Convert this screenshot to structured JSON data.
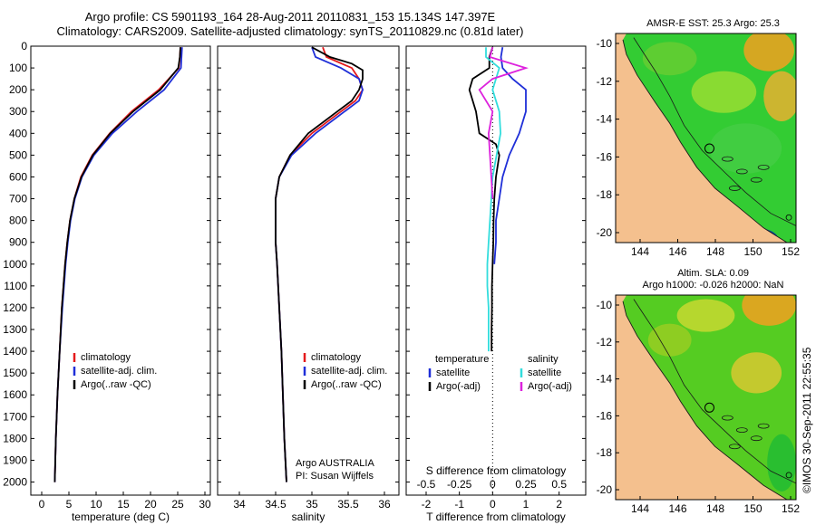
{
  "title_line1": "Argo profile: CS 5901193_164 28-Aug-2011 20110831_153 15.134S 147.397E",
  "title_line2": "Climatology: CARS2009. Satellite-adjusted climatology: synTS_20110829.nc (0.81d later)",
  "credit": "©IMOS 30-Sep-2011 22:55:35",
  "colors": {
    "climatology": "#e41a1c",
    "satellite": "#1f2fd8",
    "argo": "#000000",
    "salinity_satellite": "#33dddd",
    "salinity_argo": "#dd22dd",
    "land": "#f4c08e",
    "coast": "#1a1a1a"
  },
  "chart_data": [
    {
      "type": "line",
      "xlabel": "temperature (deg C)",
      "xlim": [
        -2,
        31
      ],
      "xticks": [
        "0",
        "5",
        "10",
        "15",
        "20",
        "25",
        "30"
      ],
      "ylim": [
        0,
        2060
      ],
      "yticks": [
        "0",
        "100",
        "200",
        "300",
        "400",
        "500",
        "600",
        "700",
        "800",
        "900",
        "1000",
        "1100",
        "1200",
        "1300",
        "1400",
        "1500",
        "1600",
        "1700",
        "1800",
        "1900",
        "2000"
      ],
      "legend": [
        "climatology",
        "satellite-adj. clim.",
        "Argo(..raw -QC)"
      ],
      "series": [
        {
          "name": "climatology",
          "depth": [
            5,
            50,
            100,
            200,
            300,
            400,
            500,
            600,
            700,
            800,
            900,
            1000,
            1200,
            1400,
            1600,
            1800,
            2000
          ],
          "values": [
            25.5,
            25.4,
            25.2,
            21.5,
            16.5,
            12.5,
            9.3,
            7.2,
            6.0,
            5.2,
            4.7,
            4.3,
            3.7,
            3.3,
            2.9,
            2.6,
            2.4
          ]
        },
        {
          "name": "satellite-adj. clim.",
          "depth": [
            5,
            50,
            100,
            200,
            300,
            400,
            500,
            600,
            700,
            800,
            900,
            1000,
            1200,
            1400,
            1600,
            1800,
            2000
          ],
          "values": [
            25.8,
            25.7,
            25.6,
            22.5,
            17.5,
            13.0,
            9.6,
            7.4,
            6.1,
            5.3,
            4.8,
            4.4,
            3.8,
            3.3,
            2.9,
            2.6,
            2.4
          ]
        },
        {
          "name": "Argo(..raw -QC)",
          "depth": [
            5,
            50,
            100,
            200,
            300,
            400,
            500,
            600,
            700,
            800,
            900,
            1000,
            1200,
            1400,
            1600,
            1800,
            2000
          ],
          "values": [
            25.5,
            25.4,
            25.1,
            21.8,
            16.8,
            12.6,
            9.4,
            7.3,
            6.0,
            5.2,
            4.7,
            4.3,
            3.7,
            3.3,
            2.9,
            2.6,
            2.4
          ]
        }
      ]
    },
    {
      "type": "line",
      "xlabel": "salinity",
      "xlim": [
        33.7,
        36.2
      ],
      "xticks": [
        "34",
        "34.5",
        "35",
        "35.5",
        "36"
      ],
      "ylim": [
        0,
        2060
      ],
      "legend": [
        "climatology",
        "satellite-adj. clim.",
        "Argo(..raw -QC)"
      ],
      "annotation": [
        "Argo AUSTRALIA",
        "PI: Susan Wijffels"
      ],
      "series": [
        {
          "name": "climatology",
          "depth": [
            5,
            50,
            100,
            150,
            200,
            250,
            300,
            400,
            500,
            600,
            700,
            800,
            900,
            1000,
            1200,
            1400,
            1600,
            1800,
            2000
          ],
          "values": [
            35.15,
            35.2,
            35.55,
            35.65,
            35.7,
            35.6,
            35.4,
            35.0,
            34.7,
            34.55,
            34.5,
            34.5,
            34.5,
            34.52,
            34.55,
            34.58,
            34.6,
            34.62,
            34.65
          ]
        },
        {
          "name": "satellite-adj. clim.",
          "depth": [
            5,
            50,
            100,
            150,
            200,
            250,
            300,
            400,
            500,
            600,
            700,
            800,
            900,
            1000,
            1200,
            1400,
            1600,
            1800,
            2000
          ],
          "values": [
            35.0,
            35.05,
            35.4,
            35.65,
            35.7,
            35.65,
            35.45,
            35.05,
            34.72,
            34.55,
            34.5,
            34.5,
            34.5,
            34.52,
            34.55,
            34.58,
            34.6,
            34.62,
            34.65
          ]
        },
        {
          "name": "Argo(..raw -QC)",
          "depth": [
            5,
            50,
            80,
            110,
            150,
            200,
            250,
            300,
            400,
            500,
            600,
            700,
            800,
            900,
            1000,
            1200,
            1400,
            1600,
            1800,
            2000
          ],
          "values": [
            35.0,
            35.25,
            35.55,
            35.7,
            35.7,
            35.65,
            35.55,
            35.35,
            34.95,
            34.7,
            34.55,
            34.5,
            34.5,
            34.5,
            34.52,
            34.55,
            34.58,
            34.6,
            34.62,
            34.65
          ]
        }
      ]
    },
    {
      "type": "line",
      "xlabel": "T difference from climatology",
      "xlabel_top": "S difference from climatology",
      "xlim": [
        -2.6,
        2.8
      ],
      "xticks": [
        "-2",
        "-1",
        "0",
        "1",
        "2"
      ],
      "xticks_top": [
        "-0.5",
        "-0.25",
        "0",
        "0.25",
        "0.5"
      ],
      "ylim": [
        0,
        2060
      ],
      "legend_headers": [
        "temperature",
        "salinity"
      ],
      "legend": [
        "satellite",
        "Argo(-adj)",
        "satellite",
        "Argo(-adj)"
      ],
      "series": [
        {
          "name": "satellite",
          "depth": [
            5,
            50,
            100,
            150,
            200,
            300,
            400,
            500,
            600,
            700,
            800,
            900,
            1000
          ],
          "values": [
            0.3,
            0.25,
            0.3,
            0.6,
            1.0,
            1.0,
            0.8,
            0.5,
            0.3,
            0.2,
            0.1,
            0.1,
            0.05
          ]
        },
        {
          "name": "Argo(-adj)",
          "depth": [
            5,
            50,
            100,
            150,
            200,
            300,
            400,
            450,
            500,
            600,
            700,
            800,
            900,
            1000,
            1100,
            1200,
            1300,
            1400
          ],
          "values": [
            0.0,
            -0.1,
            -0.1,
            -0.6,
            -0.7,
            -0.5,
            -0.4,
            0.1,
            0.2,
            0.1,
            0.05,
            0.03,
            0.02,
            0.0,
            -0.02,
            -0.02,
            -0.03,
            -0.03
          ]
        },
        {
          "name": "salinity satellite",
          "depth": [
            5,
            50,
            100,
            200,
            300,
            400,
            500,
            600,
            700,
            800,
            900,
            1000,
            1100,
            1200,
            1300,
            1400
          ],
          "values": [
            -0.05,
            -0.05,
            0.05,
            0.0,
            0.05,
            0.06,
            0.03,
            0.0,
            -0.01,
            -0.02,
            -0.03,
            -0.04,
            -0.04,
            -0.03,
            -0.03,
            -0.03
          ]
        },
        {
          "name": "salinity Argo(-adj)",
          "depth": [
            5,
            50,
            100,
            150,
            200,
            300,
            400,
            500,
            600,
            700
          ],
          "values": [
            0.0,
            -0.02,
            0.25,
            0.0,
            -0.1,
            0.0,
            -0.03,
            -0.02,
            -0.01,
            0.0
          ]
        }
      ]
    },
    {
      "type": "heatmap",
      "title": "AMSR-E SST: 25.3 Argo: 25.3",
      "xticks": [
        "144",
        "146",
        "148",
        "150",
        "152"
      ],
      "yticks": [
        "-10",
        "-12",
        "-14",
        "-16",
        "-18",
        "-20"
      ]
    },
    {
      "type": "heatmap",
      "title_line1": "Altim. SLA: 0.09",
      "title_line2": "Argo h1000: -0.026 h2000: NaN",
      "xticks": [
        "144",
        "146",
        "148",
        "150",
        "152"
      ],
      "yticks": [
        "-10",
        "-12",
        "-14",
        "-16",
        "-18",
        "-20"
      ]
    }
  ]
}
